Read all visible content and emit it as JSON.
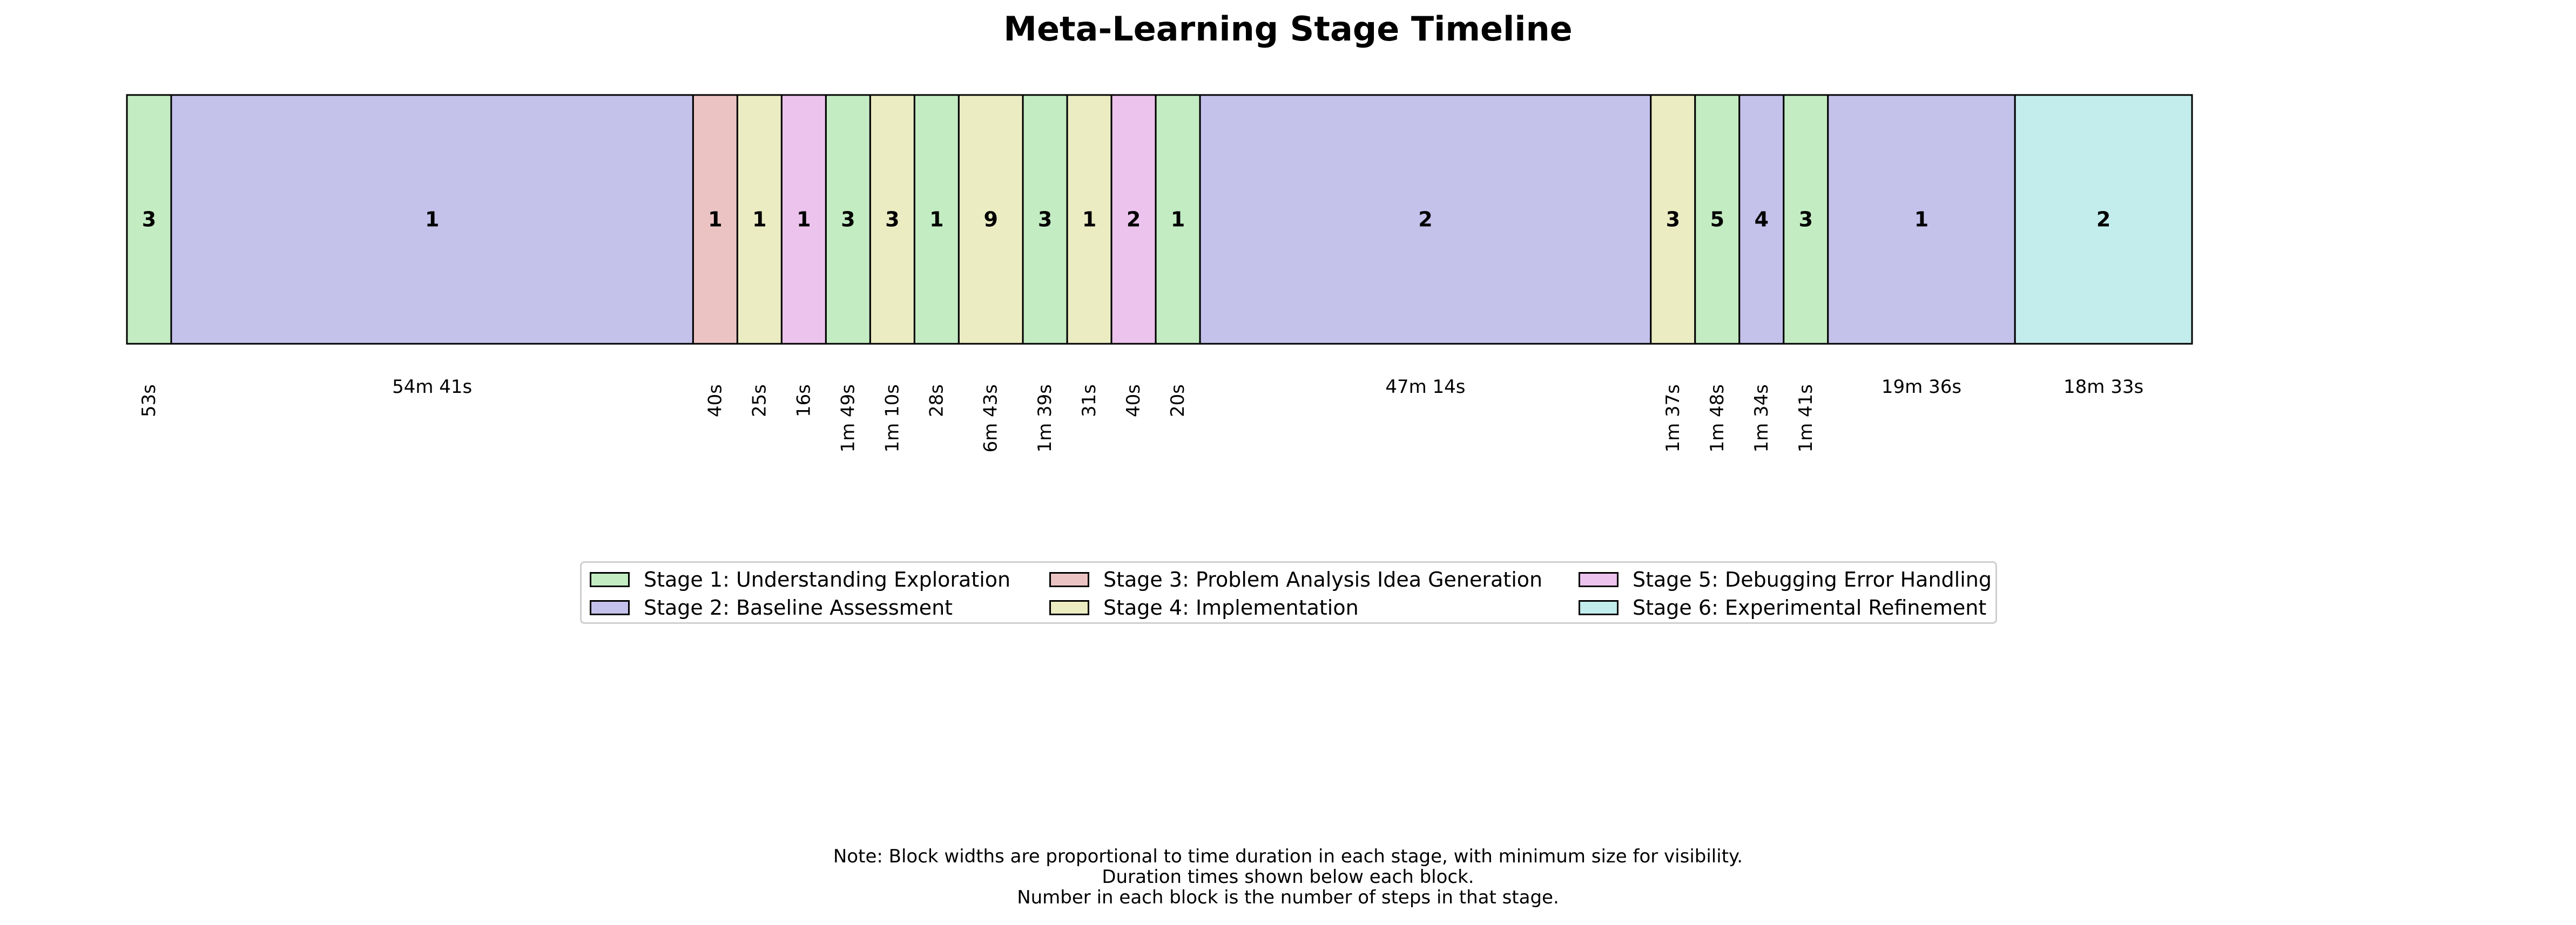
{
  "chart_data": {
    "type": "timeline",
    "title": "Meta-Learning Stage Timeline",
    "stages": [
      {
        "id": 1,
        "name": "Stage 1: Understanding Exploration",
        "color": "#c3ecc3"
      },
      {
        "id": 2,
        "name": "Stage 2: Baseline Assessment",
        "color": "#c4c2eb"
      },
      {
        "id": 3,
        "name": "Stage 3: Problem Analysis Idea Generation",
        "color": "#ecc3c3"
      },
      {
        "id": 4,
        "name": "Stage 4: Implementation",
        "color": "#ececc3"
      },
      {
        "id": 5,
        "name": "Stage 5: Debugging Error Handling",
        "color": "#ecc3ec"
      },
      {
        "id": 6,
        "name": "Stage 6: Experimental Refinement",
        "color": "#c3ecec"
      }
    ],
    "blocks": [
      {
        "stage": 1,
        "steps": 3,
        "duration": "53s",
        "seconds": 53
      },
      {
        "stage": 2,
        "steps": 1,
        "duration": "54m 41s",
        "seconds": 3281
      },
      {
        "stage": 3,
        "steps": 1,
        "duration": "40s",
        "seconds": 40
      },
      {
        "stage": 4,
        "steps": 1,
        "duration": "25s",
        "seconds": 25
      },
      {
        "stage": 5,
        "steps": 1,
        "duration": "16s",
        "seconds": 16
      },
      {
        "stage": 1,
        "steps": 3,
        "duration": "1m 49s",
        "seconds": 109
      },
      {
        "stage": 4,
        "steps": 3,
        "duration": "1m 10s",
        "seconds": 70
      },
      {
        "stage": 1,
        "steps": 1,
        "duration": "28s",
        "seconds": 28
      },
      {
        "stage": 4,
        "steps": 9,
        "duration": "6m 43s",
        "seconds": 403
      },
      {
        "stage": 1,
        "steps": 3,
        "duration": "1m 39s",
        "seconds": 99
      },
      {
        "stage": 4,
        "steps": 1,
        "duration": "31s",
        "seconds": 31
      },
      {
        "stage": 5,
        "steps": 2,
        "duration": "40s",
        "seconds": 40
      },
      {
        "stage": 1,
        "steps": 1,
        "duration": "20s",
        "seconds": 20
      },
      {
        "stage": 2,
        "steps": 2,
        "duration": "47m 14s",
        "seconds": 2834
      },
      {
        "stage": 4,
        "steps": 3,
        "duration": "1m 37s",
        "seconds": 97
      },
      {
        "stage": 1,
        "steps": 5,
        "duration": "1m 48s",
        "seconds": 108
      },
      {
        "stage": 2,
        "steps": 4,
        "duration": "1m 34s",
        "seconds": 94
      },
      {
        "stage": 1,
        "steps": 3,
        "duration": "1m 41s",
        "seconds": 101
      },
      {
        "stage": 2,
        "steps": 1,
        "duration": "19m 36s",
        "seconds": 1176
      },
      {
        "stage": 6,
        "steps": 2,
        "duration": "18m 33s",
        "seconds": 1113
      }
    ],
    "legend_position": "lower-center",
    "notes": [
      "Note: Block widths are proportional to time duration in each stage, with minimum size for visibility.",
      "Duration times shown below each block.",
      "Number in each block is the number of steps in that stage."
    ]
  }
}
